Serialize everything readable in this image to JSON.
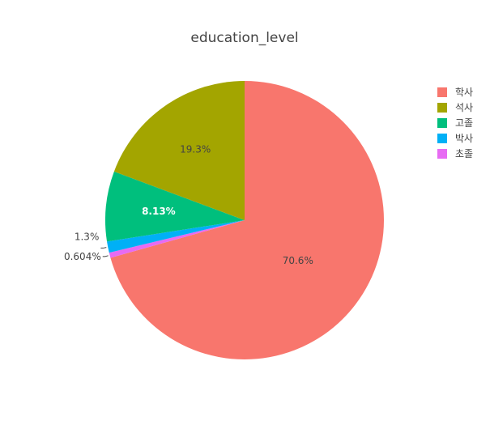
{
  "chart_data": {
    "type": "pie",
    "title": "education_level",
    "direction": "clockwise",
    "legend_position": "right",
    "slices": [
      {
        "label": "학사",
        "percent": 70.6,
        "value_label": "70.6%",
        "color": "#F8766D",
        "label_style": "dark"
      },
      {
        "label": "초졸",
        "percent": 0.604,
        "value_label": "0.604%",
        "color": "#E76BF3",
        "label_style": "outside"
      },
      {
        "label": "박사",
        "percent": 1.3,
        "value_label": "1.3%",
        "color": "#00B0F6",
        "label_style": "outside"
      },
      {
        "label": "고졸",
        "percent": 8.13,
        "value_label": "8.13%",
        "color": "#00BF7D",
        "label_style": "light"
      },
      {
        "label": "석사",
        "percent": 19.3,
        "value_label": "19.3%",
        "color": "#A3A500",
        "label_style": "dark"
      }
    ],
    "legend": [
      {
        "label": "학사",
        "color": "#F8766D"
      },
      {
        "label": "석사",
        "color": "#A3A500"
      },
      {
        "label": "고졸",
        "color": "#00BF7D"
      },
      {
        "label": "박사",
        "color": "#00B0F6"
      },
      {
        "label": "초졸",
        "color": "#E76BF3"
      }
    ]
  }
}
